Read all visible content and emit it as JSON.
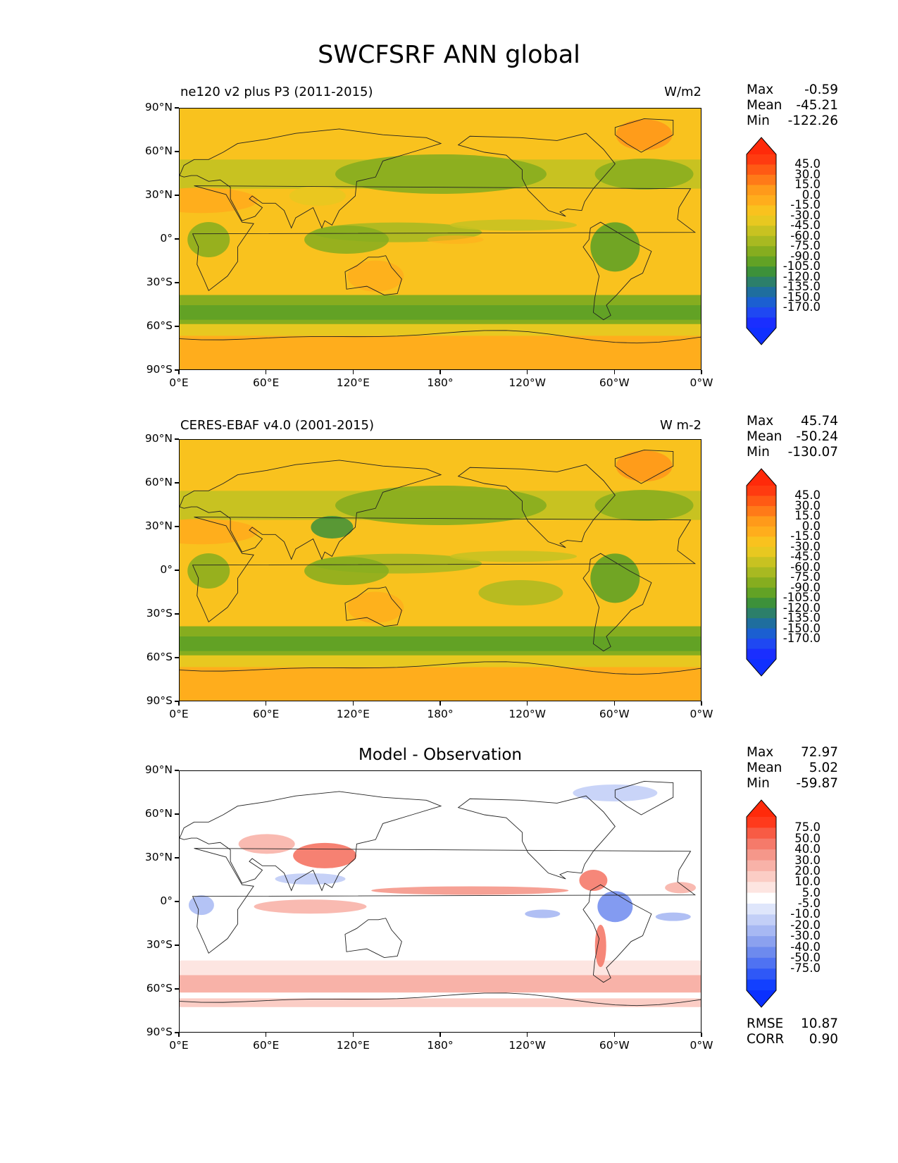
{
  "figure_title": "SWCFSRF ANN global",
  "axes": {
    "lat_labels": [
      "90°N",
      "60°N",
      "30°N",
      "0°",
      "30°S",
      "60°S",
      "90°S"
    ],
    "lon_labels": [
      "0°E",
      "60°E",
      "120°E",
      "180°",
      "120°W",
      "60°W",
      "0°W"
    ]
  },
  "panels": [
    {
      "id": "test",
      "left_title": "ne120 v2 plus P3 (2011-2015)",
      "right_title": "W/m2",
      "center_title": "",
      "stats": {
        "max_label": "Max",
        "max": "-0.59",
        "mean_label": "Mean",
        "mean": "-45.21",
        "min_label": "Min",
        "min": "-122.26"
      },
      "colorbar_levels": [
        "45.0",
        "30.0",
        "15.0",
        "0.0",
        "-15.0",
        "-30.0",
        "-45.0",
        "-60.0",
        "-75.0",
        "-90.0",
        "-105.0",
        "-120.0",
        "-135.0",
        "-150.0",
        "-170.0"
      ],
      "colorbar_colors": [
        "#ff3b10",
        "#ff5a14",
        "#ff7a18",
        "#ff9a1a",
        "#ffad1c",
        "#f9c21e",
        "#e8c820",
        "#c8c221",
        "#a8b921",
        "#86ad1f",
        "#62a225",
        "#3d913a",
        "#2c7f6a",
        "#1f6e9e",
        "#1b5fd1",
        "#1f48f2",
        "#1a2eff"
      ],
      "colorbar_top": "#ff2a0a",
      "colorbar_bottom": "#1030ff",
      "extra_stats": null
    },
    {
      "id": "reference",
      "left_title": "CERES-EBAF v4.0 (2001-2015)",
      "right_title": "W m-2",
      "center_title": "",
      "stats": {
        "max_label": "Max",
        "max": "45.74",
        "mean_label": "Mean",
        "mean": "-50.24",
        "min_label": "Min",
        "min": "-130.07"
      },
      "colorbar_levels": [
        "45.0",
        "30.0",
        "15.0",
        "0.0",
        "-15.0",
        "-30.0",
        "-45.0",
        "-60.0",
        "-75.0",
        "-90.0",
        "-105.0",
        "-120.0",
        "-135.0",
        "-150.0",
        "-170.0"
      ],
      "colorbar_colors": [
        "#ff3b10",
        "#ff5a14",
        "#ff7a18",
        "#ff9a1a",
        "#ffad1c",
        "#f9c21e",
        "#e8c820",
        "#c8c221",
        "#a8b921",
        "#86ad1f",
        "#62a225",
        "#3d913a",
        "#2c7f6a",
        "#1f6e9e",
        "#1b5fd1",
        "#1f48f2",
        "#1a2eff"
      ],
      "colorbar_top": "#ff2a0a",
      "colorbar_bottom": "#1030ff",
      "extra_stats": null
    },
    {
      "id": "diff",
      "left_title": "",
      "right_title": "",
      "center_title": "Model - Observation",
      "stats": {
        "max_label": "Max",
        "max": "72.97",
        "mean_label": "Mean",
        "mean": "5.02",
        "min_label": "Min",
        "min": "-59.87"
      },
      "colorbar_levels": [
        "75.0",
        "50.0",
        "40.0",
        "30.0",
        "20.0",
        "10.0",
        "5.0",
        "-5.0",
        "-10.0",
        "-20.0",
        "-30.0",
        "-40.0",
        "-50.0",
        "-75.0"
      ],
      "colorbar_colors": [
        "#ff3a1c",
        "#f85b44",
        "#f57a6a",
        "#f5978a",
        "#f8b2a8",
        "#fbcdc5",
        "#fde5e1",
        "#ffffff",
        "#dfe6fb",
        "#c3cff7",
        "#a7b8f3",
        "#8ba1ef",
        "#6d8aee",
        "#4f72f2",
        "#2f58f7",
        "#1240ff"
      ],
      "colorbar_top": "#ff2a0a",
      "colorbar_bottom": "#0a30ff",
      "extra_stats": {
        "rmse_label": "RMSE",
        "rmse": "10.87",
        "corr_label": "CORR",
        "corr": "0.90"
      }
    }
  ]
}
